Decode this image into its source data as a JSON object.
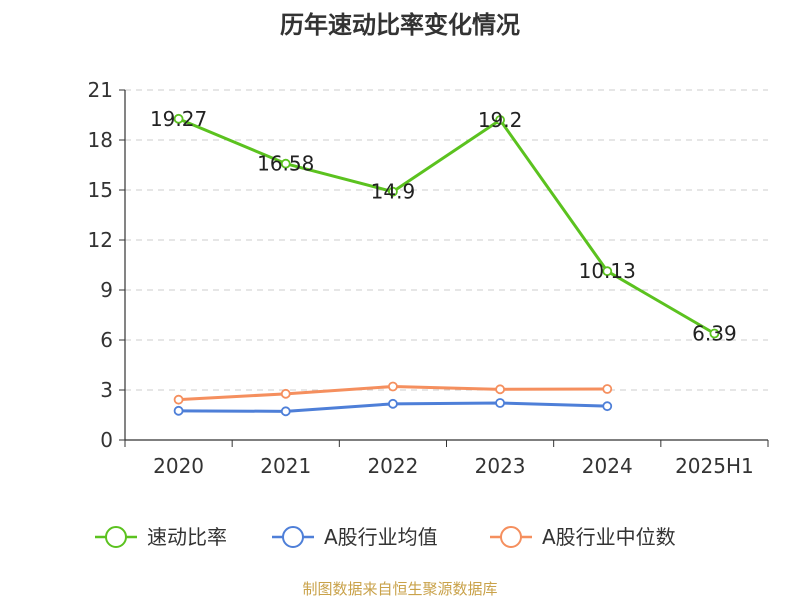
{
  "chart_data": {
    "type": "line",
    "title": "历年速动比率变化情况",
    "categories": [
      "2020",
      "2021",
      "2022",
      "2023",
      "2024",
      "2025H1"
    ],
    "ylim": [
      0,
      21
    ],
    "yticks": [
      "0",
      "3",
      "6",
      "9",
      "12",
      "15",
      "18",
      "21"
    ],
    "grid": true,
    "legend_position": "bottom",
    "series": [
      {
        "name": "速动比率",
        "color": "#5bc21f",
        "values": [
          19.27,
          16.58,
          14.9,
          19.2,
          10.13,
          6.39
        ],
        "labels": [
          "19.27",
          "16.58",
          "14.9",
          "19.2",
          "10.13",
          "6.39"
        ]
      },
      {
        "name": "A股行业均值",
        "color": "#4e7fd8",
        "values": [
          1.75,
          1.72,
          2.17,
          2.22,
          2.03,
          null
        ]
      },
      {
        "name": "A股行业中位数",
        "color": "#f58f5e",
        "values": [
          2.42,
          2.77,
          3.21,
          3.04,
          3.06,
          null
        ]
      }
    ],
    "source": "制图数据来自恒生聚源数据库",
    "source_color": "#c9a24a"
  }
}
